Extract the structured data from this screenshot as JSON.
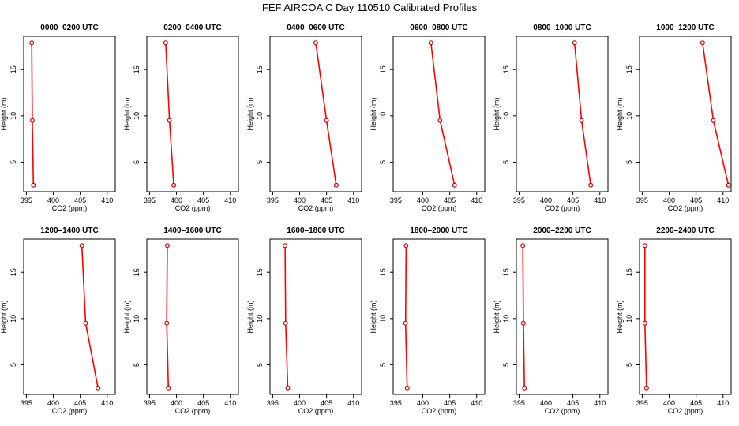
{
  "page": {
    "title": "FEF AIRCOA C  Day 110510  Calibrated Profiles"
  },
  "style": {
    "line_color": "#ff0000",
    "marker_color": "#cc0000",
    "axis_color": "#000000"
  },
  "chart_data": [
    {
      "type": "line",
      "title": "0000–0200 UTC",
      "xlabel": "CO2 (ppm)",
      "ylabel": "Height (m)",
      "xlim": [
        394.5,
        411.5
      ],
      "ylim": [
        1.8,
        18.6
      ],
      "xticks": [
        "395",
        "400",
        "405",
        "410"
      ],
      "yticks": [
        "5",
        "10",
        "15"
      ],
      "series": [
        {
          "name": "profile",
          "x": [
            396.3,
            396.1,
            396.0
          ],
          "y": [
            2.5,
            9.5,
            17.9
          ]
        }
      ]
    },
    {
      "type": "line",
      "title": "0200–0400 UTC",
      "xlabel": "CO2 (ppm)",
      "ylabel": "Height (m)",
      "xlim": [
        394.5,
        411.5
      ],
      "ylim": [
        1.8,
        18.6
      ],
      "xticks": [
        "395",
        "400",
        "405",
        "410"
      ],
      "yticks": [
        "5",
        "10",
        "15"
      ],
      "series": [
        {
          "name": "profile",
          "x": [
            399.5,
            398.7,
            398.0
          ],
          "y": [
            2.5,
            9.5,
            17.9
          ]
        }
      ]
    },
    {
      "type": "line",
      "title": "0400–0600 UTC",
      "xlabel": "CO2 (ppm)",
      "ylabel": "Height (m)",
      "xlim": [
        394.5,
        411.5
      ],
      "ylim": [
        1.8,
        18.6
      ],
      "xticks": [
        "395",
        "400",
        "405",
        "410"
      ],
      "yticks": [
        "5",
        "10",
        "15"
      ],
      "series": [
        {
          "name": "profile",
          "x": [
            406.8,
            405.0,
            403.0
          ],
          "y": [
            2.5,
            9.5,
            17.9
          ]
        }
      ]
    },
    {
      "type": "line",
      "title": "0600–0800 UTC",
      "xlabel": "CO2 (ppm)",
      "ylabel": "Height (m)",
      "xlim": [
        394.5,
        411.5
      ],
      "ylim": [
        1.8,
        18.6
      ],
      "xticks": [
        "395",
        "400",
        "405",
        "410"
      ],
      "yticks": [
        "5",
        "10",
        "15"
      ],
      "series": [
        {
          "name": "profile",
          "x": [
            405.9,
            403.2,
            401.5
          ],
          "y": [
            2.5,
            9.5,
            17.9
          ]
        }
      ]
    },
    {
      "type": "line",
      "title": "0800–1000 UTC",
      "xlabel": "CO2 (ppm)",
      "ylabel": "Height (m)",
      "xlim": [
        394.5,
        411.5
      ],
      "ylim": [
        1.8,
        18.6
      ],
      "xticks": [
        "395",
        "400",
        "405",
        "410"
      ],
      "yticks": [
        "5",
        "10",
        "15"
      ],
      "series": [
        {
          "name": "profile",
          "x": [
            408.3,
            406.6,
            405.3
          ],
          "y": [
            2.5,
            9.5,
            17.9
          ]
        }
      ]
    },
    {
      "type": "line",
      "title": "1000–1200 UTC",
      "xlabel": "CO2 (ppm)",
      "ylabel": "Height (m)",
      "xlim": [
        394.5,
        411.5
      ],
      "ylim": [
        1.8,
        18.6
      ],
      "xticks": [
        "395",
        "400",
        "405",
        "410"
      ],
      "yticks": [
        "5",
        "10",
        "15"
      ],
      "series": [
        {
          "name": "profile",
          "x": [
            411.0,
            408.2,
            406.2
          ],
          "y": [
            2.5,
            9.5,
            17.9
          ]
        }
      ]
    },
    {
      "type": "line",
      "title": "1200–1400 UTC",
      "xlabel": "CO2 (ppm)",
      "ylabel": "Height (m)",
      "xlim": [
        394.5,
        411.5
      ],
      "ylim": [
        1.8,
        18.6
      ],
      "xticks": [
        "395",
        "400",
        "405",
        "410"
      ],
      "yticks": [
        "5",
        "10",
        "15"
      ],
      "series": [
        {
          "name": "profile",
          "x": [
            408.3,
            406.0,
            405.3
          ],
          "y": [
            2.5,
            9.5,
            17.9
          ]
        }
      ]
    },
    {
      "type": "line",
      "title": "1400–1600 UTC",
      "xlabel": "CO2 (ppm)",
      "ylabel": "Height (m)",
      "xlim": [
        394.5,
        411.5
      ],
      "ylim": [
        1.8,
        18.6
      ],
      "xticks": [
        "395",
        "400",
        "405",
        "410"
      ],
      "yticks": [
        "5",
        "10",
        "15"
      ],
      "series": [
        {
          "name": "profile",
          "x": [
            398.5,
            398.2,
            398.3
          ],
          "y": [
            2.5,
            9.5,
            17.9
          ]
        }
      ]
    },
    {
      "type": "line",
      "title": "1600–1800 UTC",
      "xlabel": "CO2 (ppm)",
      "ylabel": "Height (m)",
      "xlim": [
        394.5,
        411.5
      ],
      "ylim": [
        1.8,
        18.6
      ],
      "xticks": [
        "395",
        "400",
        "405",
        "410"
      ],
      "yticks": [
        "5",
        "10",
        "15"
      ],
      "series": [
        {
          "name": "profile",
          "x": [
            397.8,
            397.4,
            397.3
          ],
          "y": [
            2.5,
            9.5,
            17.9
          ]
        }
      ]
    },
    {
      "type": "line",
      "title": "1800–2000 UTC",
      "xlabel": "CO2 (ppm)",
      "ylabel": "Height (m)",
      "xlim": [
        394.5,
        411.5
      ],
      "ylim": [
        1.8,
        18.6
      ],
      "xticks": [
        "395",
        "400",
        "405",
        "410"
      ],
      "yticks": [
        "5",
        "10",
        "15"
      ],
      "series": [
        {
          "name": "profile",
          "x": [
            397.1,
            396.8,
            396.9
          ],
          "y": [
            2.5,
            9.5,
            17.9
          ]
        }
      ]
    },
    {
      "type": "line",
      "title": "2000–2200 UTC",
      "xlabel": "CO2 (ppm)",
      "ylabel": "Height (m)",
      "xlim": [
        394.5,
        411.5
      ],
      "ylim": [
        1.8,
        18.6
      ],
      "xticks": [
        "395",
        "400",
        "405",
        "410"
      ],
      "yticks": [
        "5",
        "10",
        "15"
      ],
      "series": [
        {
          "name": "profile",
          "x": [
            396.0,
            395.8,
            395.7
          ],
          "y": [
            2.5,
            9.5,
            17.9
          ]
        }
      ]
    },
    {
      "type": "line",
      "title": "2200–2400 UTC",
      "xlabel": "CO2 (ppm)",
      "ylabel": "Height (m)",
      "xlim": [
        394.5,
        411.5
      ],
      "ylim": [
        1.8,
        18.6
      ],
      "xticks": [
        "395",
        "400",
        "405",
        "410"
      ],
      "yticks": [
        "5",
        "10",
        "15"
      ],
      "series": [
        {
          "name": "profile",
          "x": [
            395.8,
            395.5,
            395.5
          ],
          "y": [
            2.5,
            9.5,
            17.9
          ]
        }
      ]
    }
  ]
}
